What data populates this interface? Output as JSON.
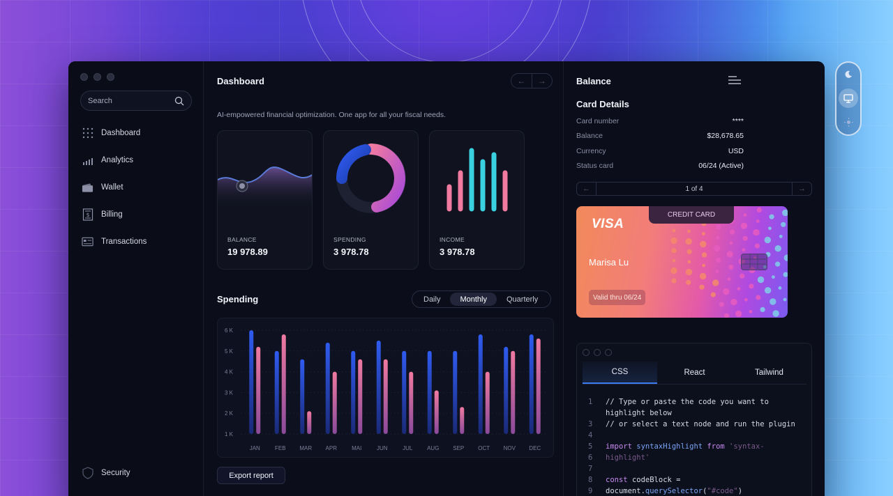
{
  "sidebar": {
    "search_placeholder": "Search",
    "items": [
      {
        "label": "Dashboard",
        "icon": "grid-icon"
      },
      {
        "label": "Analytics",
        "icon": "bar-chart-icon"
      },
      {
        "label": "Wallet",
        "icon": "wallet-icon"
      },
      {
        "label": "Billing",
        "icon": "receipt-icon"
      },
      {
        "label": "Transactions",
        "icon": "card-list-icon"
      }
    ],
    "bottom_items": [
      {
        "label": "Security",
        "icon": "shield-icon"
      }
    ]
  },
  "main": {
    "title": "Dashboard",
    "subtitle": "AI-empowered financial optimization. One app for all your fiscal needs.",
    "stats": [
      {
        "label": "BALANCE",
        "value": "19 978.89"
      },
      {
        "label": "SPENDING",
        "value": "3 978.78"
      },
      {
        "label": "INCOME",
        "value": "3 978.78"
      }
    ],
    "spending": {
      "title": "Spending",
      "periods": [
        "Daily",
        "Monthly",
        "Quarterly"
      ],
      "selected_period": "Monthly"
    },
    "export_label": "Export report"
  },
  "chart_data": {
    "type": "bar",
    "categories": [
      "JAN",
      "FEB",
      "MAR",
      "APR",
      "MAI",
      "JUN",
      "JUL",
      "AUG",
      "SEP",
      "OCT",
      "NOV",
      "DEC"
    ],
    "series": [
      {
        "values": [
          6.0,
          5.0,
          4.6,
          5.4,
          5.0,
          5.5,
          5.0,
          5.0,
          5.0,
          5.8,
          5.2,
          5.8
        ]
      },
      {
        "values": [
          5.2,
          5.8,
          2.1,
          4.0,
          4.6,
          4.6,
          4.0,
          3.1,
          2.3,
          4.0,
          5.0,
          5.6
        ]
      }
    ],
    "y_ticks": [
      "6 K",
      "5 K",
      "4 K",
      "3 K",
      "2 K",
      "1 K"
    ],
    "ylim": [
      1,
      6
    ],
    "colors": [
      "#2f5bf0",
      "#f07aa0"
    ]
  },
  "right": {
    "title": "Balance",
    "card_details_title": "Card Details",
    "details": [
      {
        "key": "Card number",
        "value": "****"
      },
      {
        "key": "Balance",
        "value": "$28,678.65"
      },
      {
        "key": "Currency",
        "value": "USD"
      },
      {
        "key": "Status card",
        "value": "06/24 (Active)"
      }
    ],
    "card_pager": "1 of 4",
    "card": {
      "brand": "VISA",
      "type": "CREDIT CARD",
      "holder": "Marisa Lu",
      "valid": "Valid thru 06/24"
    },
    "code": {
      "tabs": [
        "CSS",
        "React",
        "Tailwind"
      ],
      "active_tab": "CSS",
      "lines": [
        {
          "n": "1",
          "parts": [
            [
              "pl",
              "// Type or paste the code you want to"
            ]
          ]
        },
        {
          "n": "",
          "parts": [
            [
              "pl",
              "highlight below"
            ]
          ]
        },
        {
          "n": "3",
          "parts": [
            [
              "pl",
              "// or select a text node and run the plugin"
            ]
          ]
        },
        {
          "n": "4",
          "parts": []
        },
        {
          "n": "5",
          "parts": [
            [
              "kw",
              "import "
            ],
            [
              "fn",
              "syntaxHighlight "
            ],
            [
              "kw",
              "from "
            ],
            [
              "str",
              "'syntax-"
            ]
          ]
        },
        {
          "n": "6",
          "parts": [
            [
              "str",
              "highlight'"
            ]
          ]
        },
        {
          "n": "7",
          "parts": []
        },
        {
          "n": "8",
          "parts": [
            [
              "kw",
              "const "
            ],
            [
              "pl",
              "codeBlock ="
            ]
          ]
        },
        {
          "n": "9",
          "parts": [
            [
              "pl",
              "document."
            ],
            [
              "fn",
              "querySelector"
            ],
            [
              "pl",
              "("
            ],
            [
              "str",
              "\"#code\""
            ],
            [
              "pl",
              ")"
            ]
          ]
        }
      ]
    }
  },
  "theme_switcher": [
    "moon-icon",
    "monitor-icon",
    "sun-icon"
  ]
}
